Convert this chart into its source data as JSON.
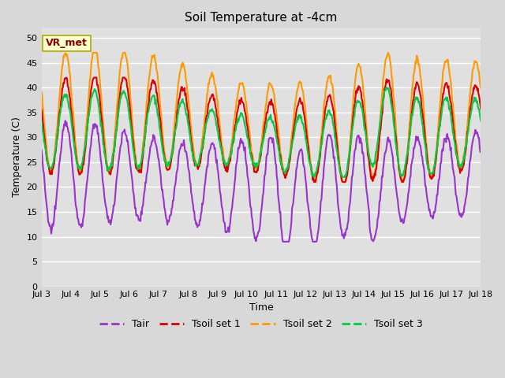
{
  "title": "Soil Temperature at -4cm",
  "xlabel": "Time",
  "ylabel": "Temperature (C)",
  "ylim": [
    0,
    52
  ],
  "yticks": [
    0,
    5,
    10,
    15,
    20,
    25,
    30,
    35,
    40,
    45,
    50
  ],
  "x_labels": [
    "Jul 3",
    "Jul 4",
    "Jul 5",
    "Jul 6",
    "Jul 7",
    "Jul 8",
    "Jul 9",
    "Jul 10",
    "Jul 11",
    "Jul 12",
    "Jul 13",
    "Jul 14",
    "Jul 15",
    "Jul 16",
    "Jul 17",
    "Jul 18"
  ],
  "legend": [
    "Tair",
    "Tsoil set 1",
    "Tsoil set 2",
    "Tsoil set 3"
  ],
  "colors": {
    "Tair": "#9933cc",
    "Tsoil set 1": "#dd0000",
    "Tsoil set 2": "#ff9900",
    "Tsoil set 3": "#00cc44"
  },
  "linewidths": {
    "Tair": 1.5,
    "Tsoil set 1": 1.5,
    "Tsoil set 2": 1.5,
    "Tsoil set 3": 1.5
  },
  "annotation": "VR_met",
  "annotation_fx": 0.01,
  "annotation_fy": 0.93,
  "bg_color": "#d8d8d8",
  "plot_bg_color": "#e0e0e0",
  "n_days": 15,
  "pts_per_day": 48
}
